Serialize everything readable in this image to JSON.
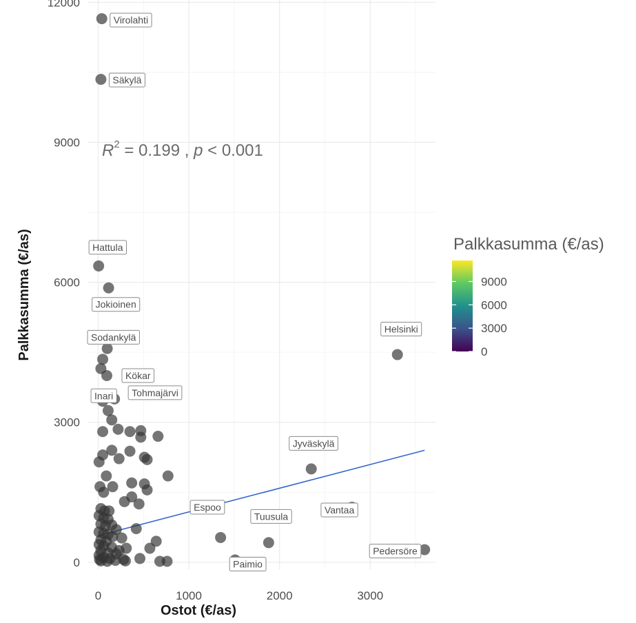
{
  "chart_data": {
    "type": "scatter",
    "xlabel": "Ostot (€/as)",
    "ylabel": "Palkkasumma (€/as)",
    "xlim": [
      -110,
      3720
    ],
    "ylim": [
      -150,
      12050
    ],
    "x_ticks": [
      0,
      1000,
      2000,
      3000
    ],
    "y_ticks": [
      0,
      3000,
      6000,
      9000,
      12000
    ],
    "grid": true,
    "annotation": {
      "r_label": "R",
      "r_exponent": "2",
      "text_mid": " = 0.199 , ",
      "p_label": "p",
      "text_end": " < 0.001"
    },
    "trend_line": {
      "x": [
        0,
        3600
      ],
      "y": [
        570,
        2400
      ],
      "color": "#3366cc"
    },
    "legend": {
      "title": "Palkkasumma (€/as)",
      "ticks": [
        0,
        3000,
        6000,
        9000
      ],
      "range": [
        0,
        11700
      ],
      "colors": [
        "#440154",
        "#3b528b",
        "#21918c",
        "#5ec962",
        "#fde725"
      ],
      "position": "right"
    },
    "labeled_points": [
      {
        "name": "Virolahti",
        "x": 40,
        "y": 11650
      },
      {
        "name": "Säkylä",
        "x": 30,
        "y": 10350
      },
      {
        "name": "Hattula",
        "x": 5,
        "y": 6350
      },
      {
        "name": "Jokioinen",
        "x": 115,
        "y": 5880
      },
      {
        "name": "Sodankylä",
        "x": 50,
        "y": 4350
      },
      {
        "name": "Kökar",
        "x": 95,
        "y": 4000
      },
      {
        "name": "Inari",
        "x": 50,
        "y": 3450
      },
      {
        "name": "Tohmajärvi",
        "x": 180,
        "y": 3500
      },
      {
        "name": "Helsinki",
        "x": 3300,
        "y": 4450
      },
      {
        "name": "Jyväskylä",
        "x": 2350,
        "y": 2000
      },
      {
        "name": "Vantaa",
        "x": 2800,
        "y": 1180
      },
      {
        "name": "Espoo",
        "x": 1350,
        "y": 530
      },
      {
        "name": "Tuusula",
        "x": 1880,
        "y": 420
      },
      {
        "name": "Paimio",
        "x": 1510,
        "y": 50
      },
      {
        "name": "Pedersöre",
        "x": 3600,
        "y": 270
      }
    ],
    "points": [
      {
        "x": 40,
        "y": 11650
      },
      {
        "x": 30,
        "y": 10350
      },
      {
        "x": 5,
        "y": 6350
      },
      {
        "x": 115,
        "y": 5880
      },
      {
        "x": 100,
        "y": 4580
      },
      {
        "x": 50,
        "y": 4350
      },
      {
        "x": 30,
        "y": 4150
      },
      {
        "x": 95,
        "y": 4000
      },
      {
        "x": 50,
        "y": 3450
      },
      {
        "x": 180,
        "y": 3500
      },
      {
        "x": 110,
        "y": 3250
      },
      {
        "x": 150,
        "y": 3050
      },
      {
        "x": 220,
        "y": 2850
      },
      {
        "x": 350,
        "y": 2800
      },
      {
        "x": 470,
        "y": 2820
      },
      {
        "x": 50,
        "y": 2800
      },
      {
        "x": 470,
        "y": 2680
      },
      {
        "x": 660,
        "y": 2700
      },
      {
        "x": 150,
        "y": 2400
      },
      {
        "x": 350,
        "y": 2380
      },
      {
        "x": 230,
        "y": 2220
      },
      {
        "x": 510,
        "y": 2250
      },
      {
        "x": 540,
        "y": 2200
      },
      {
        "x": 10,
        "y": 2150
      },
      {
        "x": 50,
        "y": 2300
      },
      {
        "x": 90,
        "y": 1850
      },
      {
        "x": 770,
        "y": 1850
      },
      {
        "x": 20,
        "y": 1620
      },
      {
        "x": 160,
        "y": 1620
      },
      {
        "x": 370,
        "y": 1700
      },
      {
        "x": 510,
        "y": 1680
      },
      {
        "x": 540,
        "y": 1550
      },
      {
        "x": 60,
        "y": 1500
      },
      {
        "x": 370,
        "y": 1400
      },
      {
        "x": 290,
        "y": 1300
      },
      {
        "x": 450,
        "y": 1250
      },
      {
        "x": 30,
        "y": 1150
      },
      {
        "x": 70,
        "y": 1100
      },
      {
        "x": 120,
        "y": 1100
      },
      {
        "x": 10,
        "y": 1000
      },
      {
        "x": 60,
        "y": 950
      },
      {
        "x": 110,
        "y": 920
      },
      {
        "x": 150,
        "y": 800
      },
      {
        "x": 30,
        "y": 820
      },
      {
        "x": 80,
        "y": 780
      },
      {
        "x": 200,
        "y": 700
      },
      {
        "x": 420,
        "y": 720
      },
      {
        "x": 10,
        "y": 650
      },
      {
        "x": 60,
        "y": 620
      },
      {
        "x": 110,
        "y": 600
      },
      {
        "x": 160,
        "y": 550
      },
      {
        "x": 260,
        "y": 520
      },
      {
        "x": 30,
        "y": 480
      },
      {
        "x": 90,
        "y": 450
      },
      {
        "x": 640,
        "y": 450
      },
      {
        "x": 10,
        "y": 380
      },
      {
        "x": 60,
        "y": 350
      },
      {
        "x": 150,
        "y": 320
      },
      {
        "x": 310,
        "y": 300
      },
      {
        "x": 570,
        "y": 300
      },
      {
        "x": 30,
        "y": 250
      },
      {
        "x": 110,
        "y": 200
      },
      {
        "x": 200,
        "y": 180
      },
      {
        "x": 230,
        "y": 250
      },
      {
        "x": 10,
        "y": 150
      },
      {
        "x": 60,
        "y": 100
      },
      {
        "x": 130,
        "y": 80
      },
      {
        "x": 280,
        "y": 60
      },
      {
        "x": 460,
        "y": 80
      },
      {
        "x": 680,
        "y": 20
      },
      {
        "x": 760,
        "y": 20
      },
      {
        "x": 30,
        "y": 30
      },
      {
        "x": 100,
        "y": 20
      },
      {
        "x": 190,
        "y": 40
      },
      {
        "x": 300,
        "y": 30
      },
      {
        "x": 15,
        "y": 60
      },
      {
        "x": 3300,
        "y": 4450
      },
      {
        "x": 2350,
        "y": 2000
      },
      {
        "x": 2800,
        "y": 1180
      },
      {
        "x": 1350,
        "y": 530
      },
      {
        "x": 1880,
        "y": 420
      },
      {
        "x": 1510,
        "y": 50
      },
      {
        "x": 3600,
        "y": 270
      }
    ],
    "point_color": "#333333"
  }
}
